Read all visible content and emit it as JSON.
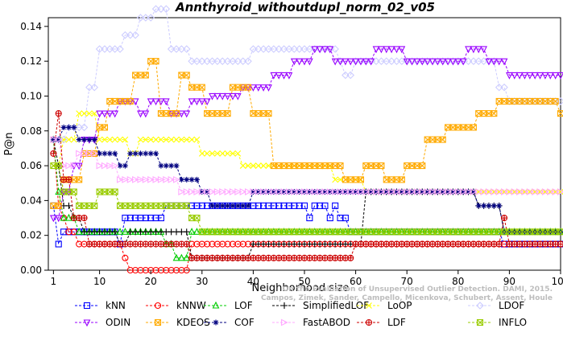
{
  "chart_data": {
    "type": "line",
    "title": "Annthyroid_withoutdupl_norm_02_v05",
    "xlabel": "Neighborhood size",
    "ylabel": "P@n",
    "xlim": [
      0,
      100
    ],
    "ylim": [
      0,
      0.145
    ],
    "x_ticks": [
      1,
      10,
      20,
      30,
      40,
      50,
      60,
      70,
      80,
      90,
      100
    ],
    "y_ticks": [
      0.0,
      0.02,
      0.04,
      0.06,
      0.08,
      0.1,
      0.12,
      0.14
    ],
    "y_tick_labels": [
      "0.00",
      "0.02",
      "0.04",
      "0.06",
      "0.08",
      "0.10",
      "0.12",
      "0.14"
    ],
    "grid": false,
    "legend_position": "bottom",
    "series": [
      {
        "name": "kNN",
        "color": "#0000ff",
        "marker": "square",
        "points": [
          [
            1,
            0.037
          ],
          [
            2,
            0.015
          ],
          [
            3,
            0.022
          ],
          [
            8,
            0.022
          ],
          [
            14,
            0.015
          ],
          [
            15,
            0.03
          ],
          [
            22,
            0.03
          ],
          [
            23,
            0.037
          ],
          [
            50,
            0.037
          ],
          [
            51,
            0.03
          ],
          [
            52,
            0.037
          ],
          [
            55,
            0.03
          ],
          [
            56,
            0.037
          ],
          [
            57,
            0.03
          ],
          [
            58,
            0.03
          ],
          [
            59,
            0.022
          ],
          [
            88,
            0.022
          ],
          [
            89,
            0.015
          ],
          [
            100,
            0.015
          ]
        ]
      },
      {
        "name": "kNNW",
        "color": "#ff0000",
        "marker": "circle",
        "points": [
          [
            1,
            0.075
          ],
          [
            2,
            0.037
          ],
          [
            3,
            0.03
          ],
          [
            4,
            0.022
          ],
          [
            6,
            0.015
          ],
          [
            14,
            0.015
          ],
          [
            15,
            0.007
          ],
          [
            16,
            0.0
          ],
          [
            27,
            0.0
          ],
          [
            28,
            0.015
          ],
          [
            100,
            0.015
          ]
        ]
      },
      {
        "name": "LOF",
        "color": "#00cc00",
        "marker": "triangle-up",
        "points": [
          [
            1,
            0.075
          ],
          [
            2,
            0.045
          ],
          [
            3,
            0.03
          ],
          [
            5,
            0.03
          ],
          [
            6,
            0.022
          ],
          [
            22,
            0.022
          ],
          [
            23,
            0.015
          ],
          [
            25,
            0.007
          ],
          [
            27,
            0.007
          ],
          [
            28,
            0.022
          ],
          [
            100,
            0.022
          ]
        ]
      },
      {
        "name": "SimplifiedLOF",
        "color": "#000000",
        "marker": "plus",
        "points": [
          [
            1,
            0.075
          ],
          [
            2,
            0.06
          ],
          [
            3,
            0.037
          ],
          [
            5,
            0.03
          ],
          [
            7,
            0.022
          ],
          [
            10,
            0.022
          ],
          [
            14,
            0.015
          ],
          [
            16,
            0.022
          ],
          [
            26,
            0.022
          ],
          [
            28,
            0.007
          ],
          [
            38,
            0.007
          ],
          [
            40,
            0.015
          ],
          [
            60,
            0.015
          ],
          [
            62,
            0.045
          ],
          [
            83,
            0.045
          ],
          [
            84,
            0.037
          ],
          [
            88,
            0.037
          ],
          [
            89,
            0.022
          ],
          [
            100,
            0.022
          ]
        ]
      },
      {
        "name": "LoOP",
        "color": "#ffff00",
        "marker": "x",
        "points": [
          [
            1,
            0.06
          ],
          [
            3,
            0.075
          ],
          [
            6,
            0.09
          ],
          [
            10,
            0.075
          ],
          [
            16,
            0.067
          ],
          [
            18,
            0.075
          ],
          [
            28,
            0.075
          ],
          [
            30,
            0.067
          ],
          [
            37,
            0.067
          ],
          [
            38,
            0.06
          ],
          [
            55,
            0.06
          ],
          [
            56,
            0.052
          ],
          [
            60,
            0.052
          ],
          [
            62,
            0.045
          ],
          [
            100,
            0.045
          ]
        ]
      },
      {
        "name": "LDOF",
        "color": "#ccccff",
        "marker": "diamond",
        "points": [
          [
            1,
            0.075
          ],
          [
            4,
            0.082
          ],
          [
            8,
            0.105
          ],
          [
            10,
            0.127
          ],
          [
            15,
            0.135
          ],
          [
            18,
            0.145
          ],
          [
            21,
            0.15
          ],
          [
            24,
            0.127
          ],
          [
            28,
            0.12
          ],
          [
            36,
            0.12
          ],
          [
            40,
            0.127
          ],
          [
            56,
            0.127
          ],
          [
            57,
            0.12
          ],
          [
            58,
            0.112
          ],
          [
            60,
            0.12
          ],
          [
            86,
            0.12
          ],
          [
            88,
            0.105
          ],
          [
            90,
            0.097
          ],
          [
            100,
            0.097
          ]
        ]
      },
      {
        "name": "ODIN",
        "color": "#9900ff",
        "marker": "triangle-down",
        "points": [
          [
            1,
            0.03
          ],
          [
            3,
            0.045
          ],
          [
            5,
            0.06
          ],
          [
            7,
            0.075
          ],
          [
            10,
            0.09
          ],
          [
            14,
            0.097
          ],
          [
            18,
            0.09
          ],
          [
            20,
            0.097
          ],
          [
            24,
            0.09
          ],
          [
            28,
            0.097
          ],
          [
            32,
            0.1
          ],
          [
            38,
            0.105
          ],
          [
            44,
            0.112
          ],
          [
            48,
            0.12
          ],
          [
            52,
            0.127
          ],
          [
            56,
            0.12
          ],
          [
            60,
            0.12
          ],
          [
            64,
            0.127
          ],
          [
            70,
            0.12
          ],
          [
            76,
            0.12
          ],
          [
            82,
            0.127
          ],
          [
            86,
            0.12
          ],
          [
            90,
            0.112
          ],
          [
            100,
            0.112
          ]
        ]
      },
      {
        "name": "KDEOS",
        "color": "#ffaa00",
        "marker": "square-x",
        "points": [
          [
            1,
            0.037
          ],
          [
            3,
            0.052
          ],
          [
            7,
            0.067
          ],
          [
            10,
            0.082
          ],
          [
            12,
            0.097
          ],
          [
            17,
            0.112
          ],
          [
            20,
            0.12
          ],
          [
            22,
            0.09
          ],
          [
            26,
            0.112
          ],
          [
            28,
            0.105
          ],
          [
            31,
            0.09
          ],
          [
            36,
            0.105
          ],
          [
            40,
            0.09
          ],
          [
            44,
            0.06
          ],
          [
            56,
            0.06
          ],
          [
            58,
            0.052
          ],
          [
            62,
            0.06
          ],
          [
            66,
            0.052
          ],
          [
            70,
            0.06
          ],
          [
            74,
            0.075
          ],
          [
            78,
            0.082
          ],
          [
            84,
            0.09
          ],
          [
            88,
            0.097
          ],
          [
            100,
            0.09
          ]
        ]
      },
      {
        "name": "COF",
        "color": "#000080",
        "marker": "asterisk",
        "points": [
          [
            1,
            0.075
          ],
          [
            3,
            0.082
          ],
          [
            6,
            0.075
          ],
          [
            10,
            0.067
          ],
          [
            14,
            0.06
          ],
          [
            16,
            0.067
          ],
          [
            22,
            0.06
          ],
          [
            26,
            0.052
          ],
          [
            30,
            0.045
          ],
          [
            32,
            0.037
          ],
          [
            38,
            0.037
          ],
          [
            40,
            0.045
          ],
          [
            82,
            0.045
          ],
          [
            84,
            0.037
          ],
          [
            88,
            0.037
          ],
          [
            89,
            0.022
          ],
          [
            100,
            0.022
          ]
        ]
      },
      {
        "name": "FastABOD",
        "color": "#ffaaff",
        "marker": "triangle-right",
        "points": [
          [
            1,
            0.075
          ],
          [
            3,
            0.06
          ],
          [
            6,
            0.067
          ],
          [
            10,
            0.06
          ],
          [
            14,
            0.052
          ],
          [
            24,
            0.052
          ],
          [
            26,
            0.045
          ],
          [
            40,
            0.045
          ],
          [
            60,
            0.045
          ],
          [
            100,
            0.045
          ]
        ]
      },
      {
        "name": "LDF",
        "color": "#cc0000",
        "marker": "circle-plus",
        "points": [
          [
            1,
            0.067
          ],
          [
            2,
            0.09
          ],
          [
            3,
            0.052
          ],
          [
            5,
            0.03
          ],
          [
            8,
            0.015
          ],
          [
            26,
            0.015
          ],
          [
            28,
            0.007
          ],
          [
            58,
            0.007
          ],
          [
            60,
            0.015
          ],
          [
            88,
            0.015
          ],
          [
            89,
            0.03
          ],
          [
            90,
            0.015
          ],
          [
            100,
            0.015
          ]
        ]
      },
      {
        "name": "INFLO",
        "color": "#99cc00",
        "marker": "square-x2",
        "points": [
          [
            1,
            0.06
          ],
          [
            3,
            0.045
          ],
          [
            6,
            0.037
          ],
          [
            10,
            0.045
          ],
          [
            14,
            0.037
          ],
          [
            28,
            0.03
          ],
          [
            30,
            0.022
          ],
          [
            100,
            0.022
          ]
        ]
      }
    ]
  },
  "watermark_lines": [
    "Campos, Zimek, Sander, Campello, Micenkova, Schubert, Assent, Houle",
    "On the Evaluation of Unsupervised Outlier Detection. DAMI, 2015."
  ]
}
